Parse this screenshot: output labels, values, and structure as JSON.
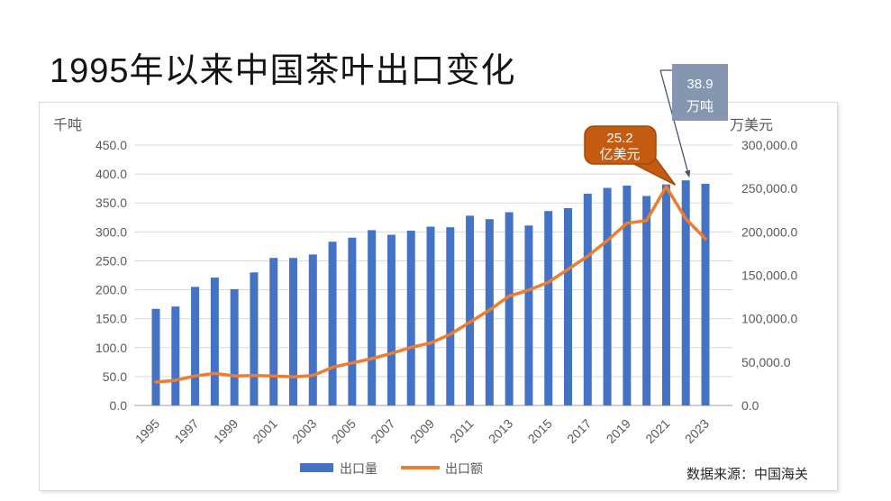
{
  "page": {
    "title": "1995年以来中国茶叶出口变化"
  },
  "chart_data": {
    "type": "bar+line",
    "title": "1995年以来中国茶叶出口变化",
    "categories": [
      1995,
      1996,
      1997,
      1998,
      1999,
      2000,
      2001,
      2002,
      2003,
      2004,
      2005,
      2006,
      2007,
      2008,
      2009,
      2010,
      2011,
      2012,
      2013,
      2014,
      2015,
      2016,
      2017,
      2018,
      2019,
      2020,
      2021,
      2022,
      2023
    ],
    "x_tick_labels": [
      "1995",
      "1997",
      "1999",
      "2001",
      "2003",
      "2005",
      "2007",
      "2009",
      "2011",
      "2013",
      "2015",
      "2017",
      "2019",
      "2021",
      "2023"
    ],
    "series": [
      {
        "name": "出口量",
        "type": "bar",
        "axis": "left",
        "unit": "千吨",
        "color": "#4472C4",
        "values": [
          167,
          171,
          205,
          221,
          201,
          230,
          255,
          255,
          261,
          283,
          290,
          303,
          295,
          302,
          309,
          308,
          328,
          322,
          334,
          311,
          336,
          341,
          366,
          376,
          380,
          362,
          382,
          389,
          383
        ]
      },
      {
        "name": "出口额",
        "type": "line",
        "axis": "right",
        "unit": "万美元",
        "color": "#ED7D31",
        "values": [
          27000,
          29000,
          34000,
          37000,
          34000,
          34500,
          34000,
          33000,
          34500,
          44000,
          49000,
          54000,
          60000,
          67000,
          72000,
          82000,
          96000,
          110000,
          126000,
          133000,
          142000,
          157000,
          172000,
          190000,
          210000,
          213000,
          252000,
          215000,
          192000
        ]
      }
    ],
    "left_axis": {
      "title": "千吨",
      "min": 0,
      "max": 450,
      "step": 50,
      "tick_format": "0.0"
    },
    "right_axis": {
      "title": "万美元",
      "min": 0,
      "max": 300000,
      "step": 50000,
      "tick_format": "#,##0.0"
    },
    "grid": "horizontal",
    "legend_position": "bottom",
    "annotations": [
      {
        "line1": "38.9",
        "line2": "万吨",
        "series": "出口量",
        "year": 2022,
        "style": "box",
        "box_color": "#8496B0",
        "text_color": "#FFFFFF"
      },
      {
        "line1": "25.2",
        "line2": "亿美元",
        "series": "出口额",
        "year": 2021,
        "style": "callout",
        "box_color": "#C55A11",
        "border_color": "#A0490D",
        "text_color": "#FFFFFF"
      }
    ],
    "source_note": "数据来源：中国海关",
    "colors": {
      "axis_text": "#595959",
      "gridline": "#D9D9D9",
      "baseline": "#BFBFBF",
      "leader_line": "#44546A"
    }
  }
}
